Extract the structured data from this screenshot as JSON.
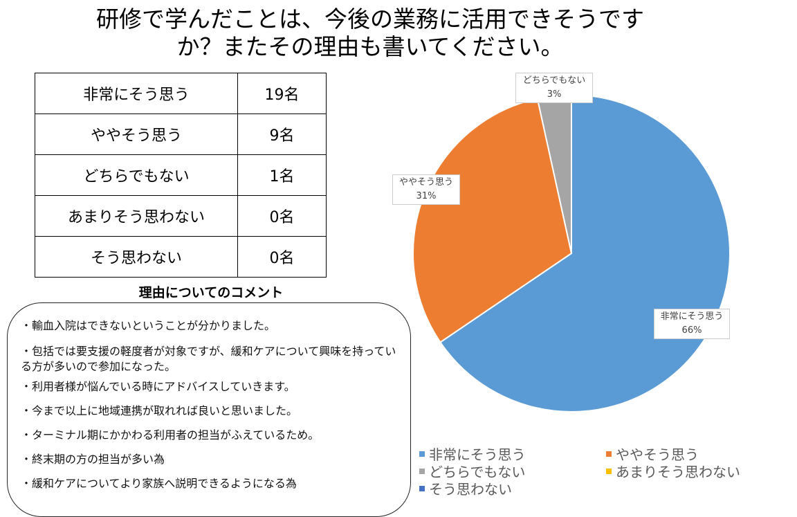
{
  "title_lines": [
    "研修で学んだことは、今後の業務に活用できそうです",
    "か？またその理由も書いてください。"
  ],
  "table": [
    [
      "非常にそう思う",
      "19名"
    ],
    [
      "ややそう思う",
      "9名"
    ],
    [
      "どちらでもない",
      "1名"
    ],
    [
      "あまりそう思わない",
      "0名"
    ],
    [
      "そう思わない",
      "0名"
    ]
  ],
  "comments_heading": "理由についてのコメント",
  "comments": [
    "・輸血入院はできないということが分かりました。",
    "・包括では要支援の軽度者が対象ですが、緩和ケアについて興味を持っている方が多いので参加になった。",
    "・利用者様が悩んでいる時にアドバイスしていきます。",
    "・今まで以上に地域連携が取れれば良いと思いました。",
    "・ターミナル期にかかわる利用者の担当がふえているため。",
    "・終末期の方の担当が多い為",
    "・緩和ケアについてより家族へ説明できるようになる為"
  ],
  "chart_data": {
    "type": "pie",
    "categories": [
      "非常にそう思う",
      "ややそう思う",
      "どちらでもない",
      "あまりそう思わない",
      "そう思わない"
    ],
    "values": [
      19,
      9,
      1,
      0,
      0
    ],
    "data_labels": [
      "66%",
      "31%",
      "3%",
      "",
      ""
    ],
    "colors": [
      "#5B9BD5",
      "#ED7D31",
      "#A5A5A5",
      "#FFC000",
      "#4472C4"
    ],
    "legend": "bottom"
  }
}
